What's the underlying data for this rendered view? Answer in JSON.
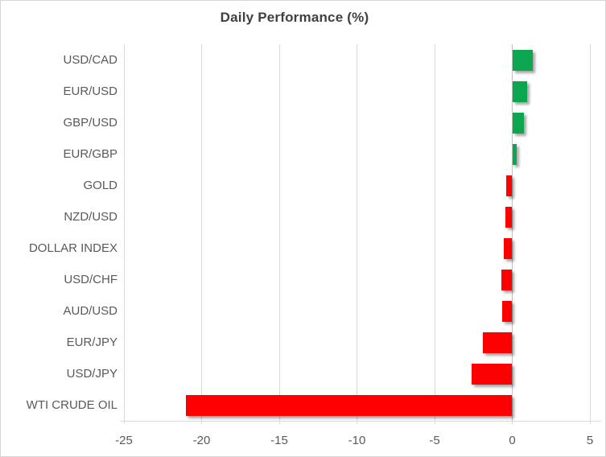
{
  "chart_data": {
    "type": "bar",
    "orientation": "horizontal",
    "title": "Daily Performance (%)",
    "categories": [
      "USD/CAD",
      "EUR/USD",
      "GBP/USD",
      "EUR/GBP",
      "GOLD",
      "NZD/USD",
      "DOLLAR INDEX",
      "USD/CHF",
      "AUD/USD",
      "EUR/JPY",
      "USD/JPY",
      "WTI CRUDE OIL"
    ],
    "values": [
      1.3,
      0.95,
      0.7,
      0.25,
      -0.4,
      -0.45,
      -0.55,
      -0.7,
      -0.65,
      -1.9,
      -2.6,
      -21.0
    ],
    "xlabel": "",
    "ylabel": "",
    "xlim": [
      -25,
      5
    ],
    "xticks": [
      -25,
      -20,
      -15,
      -10,
      -5,
      0,
      5
    ],
    "grid": "vertical",
    "legend": "none",
    "colors": {
      "positive": "#0ca64e",
      "negative": "#ff0000",
      "gridline": "#d9d9d9",
      "zero_axis": "#bfbfbf",
      "title_text": "#404040",
      "label_text": "#595959",
      "border": "#d6d6d6",
      "background": "#ffffff"
    }
  }
}
